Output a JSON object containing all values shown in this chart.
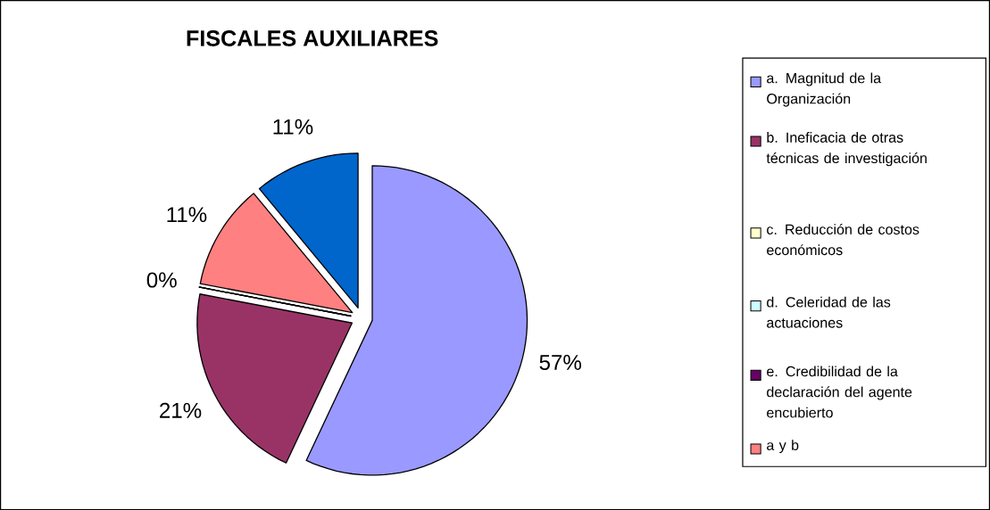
{
  "chart_data": {
    "type": "pie",
    "title": "FISCALES AUXILIARES",
    "categories": [
      "a. Magnitud de la Organización",
      "b. Ineficacia de otras técnicas de investigación",
      "c. Reducción de costos económicos",
      "d. Celeridad de las actuaciones",
      "e. Credibilidad de la declaración del agente encubierto",
      "a y b",
      null
    ],
    "values": [
      57,
      21,
      0,
      0,
      0,
      11,
      11
    ],
    "colors": [
      "#9999ff",
      "#993366",
      "#ffffcc",
      "#ccffff",
      "#660066",
      "#ff8080",
      "#0066cc"
    ],
    "value_labels": [
      "57%",
      "21%",
      "0%",
      null,
      null,
      "11%",
      "11%"
    ],
    "legend": "right"
  }
}
